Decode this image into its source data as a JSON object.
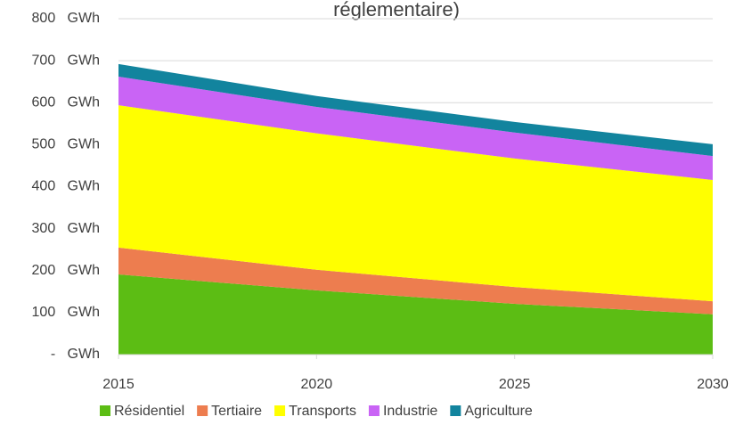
{
  "chart_data": {
    "type": "stacked_area",
    "title": "réglementaire)",
    "x": [
      2015,
      2020,
      2025,
      2030
    ],
    "series": [
      {
        "name": "Résidentiel",
        "color": "#5cbd14",
        "values": [
          191,
          153,
          121,
          96
        ]
      },
      {
        "name": "Tertiaire",
        "color": "#ed7d4f",
        "values": [
          64,
          49,
          40,
          31
        ]
      },
      {
        "name": "Transports",
        "color": "#ffff00",
        "values": [
          339,
          325,
          306,
          289
        ]
      },
      {
        "name": "Industrie",
        "color": "#c964f5",
        "values": [
          68,
          63,
          62,
          57
        ]
      },
      {
        "name": "Agriculture",
        "color": "#12849e",
        "values": [
          30,
          26,
          25,
          28
        ]
      }
    ],
    "xlim": [
      2015,
      2030
    ],
    "xticks": [
      2015,
      2020,
      2025,
      2030
    ],
    "ylim": [
      0,
      800
    ],
    "yticks": [
      {
        "value": 0,
        "label": "-   GWh"
      },
      {
        "value": 100,
        "label": "100   GWh"
      },
      {
        "value": 200,
        "label": "200   GWh"
      },
      {
        "value": 300,
        "label": "300   GWh"
      },
      {
        "value": 400,
        "label": "400   GWh"
      },
      {
        "value": 500,
        "label": "500   GWh"
      },
      {
        "value": 600,
        "label": "600   GWh"
      },
      {
        "value": 700,
        "label": "700   GWh"
      },
      {
        "value": 800,
        "label": "800   GWh"
      }
    ],
    "grid": true,
    "legend": "bottom"
  }
}
